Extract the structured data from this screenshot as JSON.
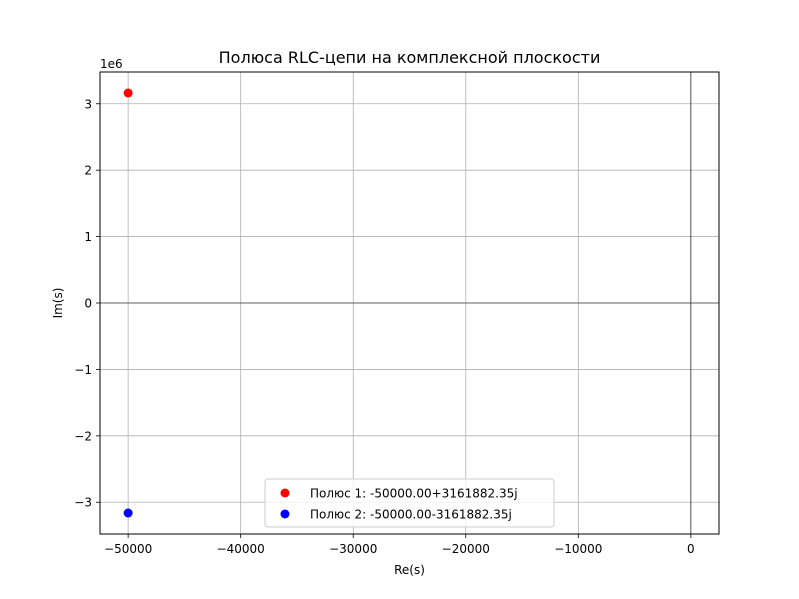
{
  "chart_data": {
    "type": "scatter",
    "title": "Полюса RLC-цепи на комплексной плоскости",
    "xlabel": "Re(s)",
    "ylabel": "Im(s)",
    "y_offset_text": "1e6",
    "xlim": [
      -52500,
      2500
    ],
    "ylim": [
      -3478070.585,
      3478070.585
    ],
    "x_ticks": [
      -50000,
      -40000,
      -30000,
      -20000,
      -10000,
      0
    ],
    "x_tick_labels": [
      "−50000",
      "−40000",
      "−30000",
      "−20000",
      "−10000",
      "0"
    ],
    "y_ticks": [
      -3000000,
      -2000000,
      -1000000,
      0,
      1000000,
      2000000,
      3000000
    ],
    "y_tick_labels": [
      "−3",
      "−2",
      "−1",
      "0",
      "1",
      "2",
      "3"
    ],
    "grid": true,
    "reference_lines": {
      "x": 0,
      "y": 0
    },
    "legend_position": "lower center",
    "series": [
      {
        "name": "Полюс 1: -50000.00+3161882.35j",
        "color": "#ff0000",
        "points": [
          {
            "x": -50000,
            "y": 3161882.35
          }
        ]
      },
      {
        "name": "Полюс 2: -50000.00-3161882.35j",
        "color": "#0000ff",
        "points": [
          {
            "x": -50000,
            "y": -3161882.35
          }
        ]
      }
    ]
  }
}
